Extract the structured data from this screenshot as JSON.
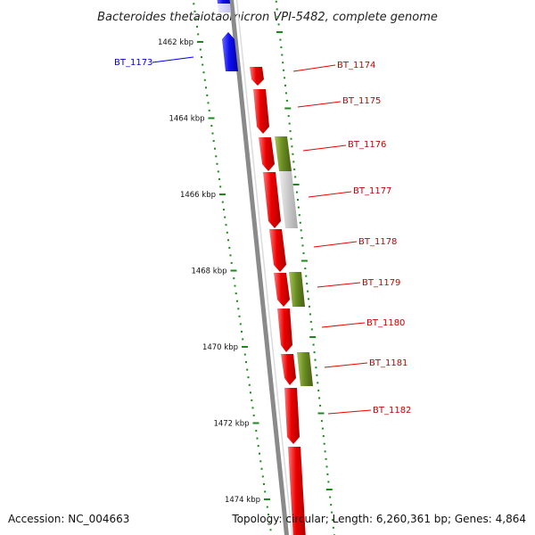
{
  "title": "Bacteroides thetaiotaomicron VPI-5482, complete genome",
  "footer": {
    "accession": "Accession: NC_004663",
    "summary": "Topology: circular; Length: 6,260,361 bp; Genes: 4,864"
  },
  "colors": {
    "backbone": "#8a8a8a",
    "tick": "#1a8a1a",
    "forward_gene": "#0000ee",
    "reverse_gene": "#ee0000",
    "rna_gene": "#6b8e23",
    "pseudo_gene": "#c8c8c8"
  },
  "scale": {
    "unit": "kbp",
    "labels": [
      {
        "kbp": 1462,
        "text": "1462 kbp"
      },
      {
        "kbp": 1464,
        "text": "1464 kbp"
      },
      {
        "kbp": 1466,
        "text": "1466 kbp"
      },
      {
        "kbp": 1468,
        "text": "1468 kbp"
      },
      {
        "kbp": 1470,
        "text": "1470 kbp"
      },
      {
        "kbp": 1472,
        "text": "1472 kbp"
      },
      {
        "kbp": 1474,
        "text": "1474 kbp"
      }
    ]
  },
  "genes": [
    {
      "id": "BT_1173",
      "label": "BT_1173",
      "strand": "forward",
      "type": "forward_gene"
    },
    {
      "id": "BT_1174",
      "label": "BT_1174",
      "strand": "reverse",
      "type": "reverse_gene"
    },
    {
      "id": "BT_1175",
      "label": "BT_1175",
      "strand": "reverse",
      "type": "reverse_gene"
    },
    {
      "id": "BT_1176",
      "label": "BT_1176",
      "strand": "reverse",
      "type": "rna_gene"
    },
    {
      "id": "BT_1177",
      "label": "BT_1177",
      "strand": "reverse",
      "type": "pseudo_gene"
    },
    {
      "id": "BT_1178",
      "label": "BT_1178",
      "strand": "reverse",
      "type": "reverse_gene"
    },
    {
      "id": "BT_1179",
      "label": "BT_1179",
      "strand": "reverse",
      "type": "rna_gene"
    },
    {
      "id": "BT_1180",
      "label": "BT_1180",
      "strand": "reverse",
      "type": "reverse_gene"
    },
    {
      "id": "BT_1181",
      "label": "BT_1181",
      "strand": "reverse",
      "type": "rna_gene"
    },
    {
      "id": "BT_1182",
      "label": "BT_1182",
      "strand": "reverse",
      "type": "reverse_gene"
    }
  ]
}
